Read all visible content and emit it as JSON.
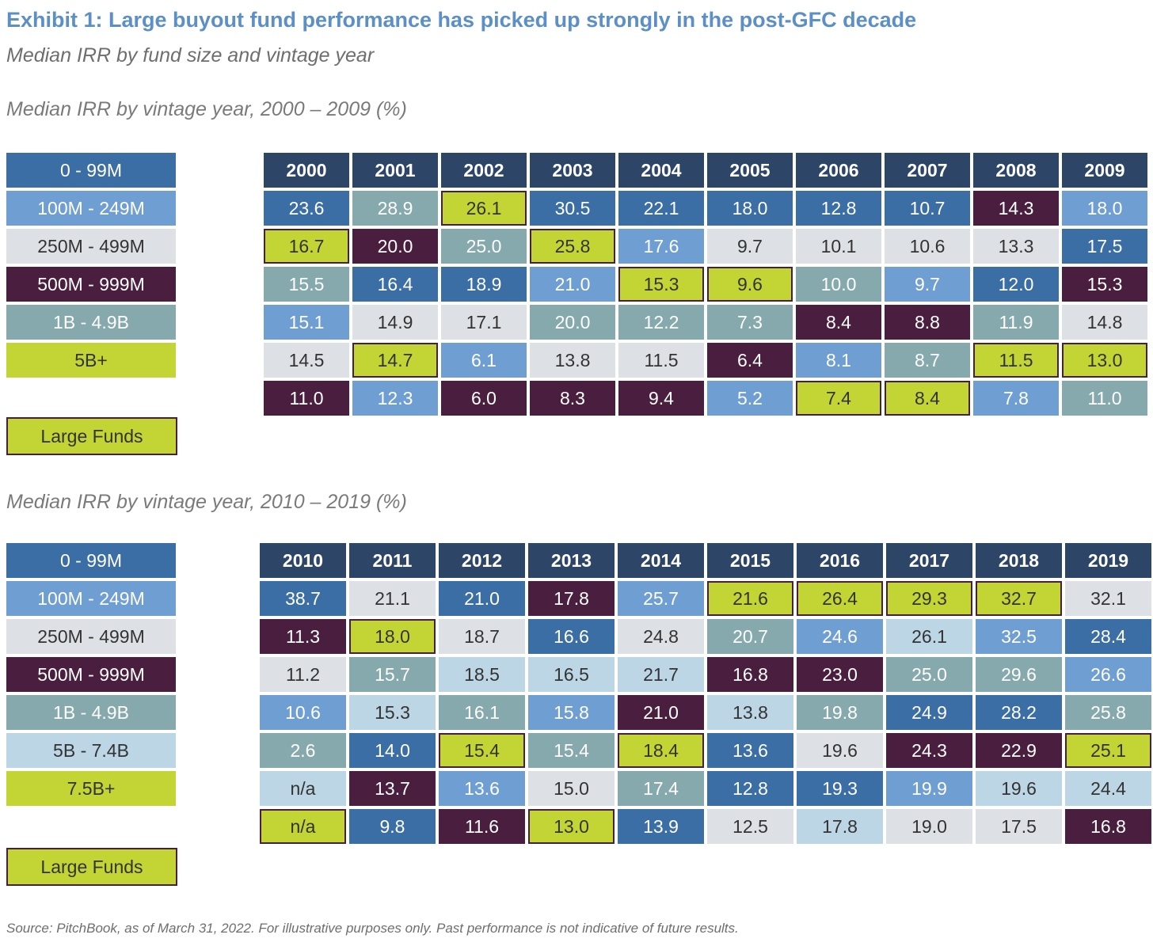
{
  "title": "Exhibit 1: Large buyout fund performance has picked up strongly in the post-GFC decade",
  "subtitle": "Median IRR by fund size and vintage year",
  "source": "Source: PitchBook, as of March 31, 2022. For illustrative purposes only. Past performance is not indicative of future results.",
  "large_funds_label": "Large Funds",
  "colors": {
    "0-99M": "#3b6ea5",
    "100M-249M": "#6f9ed2",
    "250M-499M": "#dde1e6",
    "500M-999M": "#4a1e3e",
    "1B-4.9B": "#85a9ad",
    "5B-7.4B": "#bcd6e6",
    "large": "#c3d535",
    "header": "#2d4566"
  },
  "chart_data": [
    {
      "type": "table",
      "title": "Median IRR by vintage year, 2000 – 2009 (%)",
      "legend": [
        {
          "label": "0 - 99M",
          "key": "0-99M"
        },
        {
          "label": "100M - 249M",
          "key": "100M-249M"
        },
        {
          "label": "250M - 499M",
          "key": "250M-499M"
        },
        {
          "label": "500M - 999M",
          "key": "500M-999M"
        },
        {
          "label": "1B - 4.9B",
          "key": "1B-4.9B"
        },
        {
          "label": "5B+",
          "key": "large"
        }
      ],
      "years": [
        "2000",
        "2001",
        "2002",
        "2003",
        "2004",
        "2005",
        "2006",
        "2007",
        "2008",
        "2009"
      ],
      "rows": [
        [
          {
            "value": "23.6",
            "size": "0-99M"
          },
          {
            "value": "28.9",
            "size": "1B-4.9B"
          },
          {
            "value": "26.1",
            "size": "large"
          },
          {
            "value": "30.5",
            "size": "0-99M"
          },
          {
            "value": "22.1",
            "size": "0-99M"
          },
          {
            "value": "18.0",
            "size": "0-99M"
          },
          {
            "value": "12.8",
            "size": "0-99M"
          },
          {
            "value": "10.7",
            "size": "0-99M"
          },
          {
            "value": "14.3",
            "size": "500M-999M"
          },
          {
            "value": "18.0",
            "size": "100M-249M"
          }
        ],
        [
          {
            "value": "16.7",
            "size": "large"
          },
          {
            "value": "20.0",
            "size": "500M-999M"
          },
          {
            "value": "25.0",
            "size": "1B-4.9B"
          },
          {
            "value": "25.8",
            "size": "large"
          },
          {
            "value": "17.6",
            "size": "100M-249M"
          },
          {
            "value": "9.7",
            "size": "250M-499M"
          },
          {
            "value": "10.1",
            "size": "250M-499M"
          },
          {
            "value": "10.6",
            "size": "250M-499M"
          },
          {
            "value": "13.3",
            "size": "250M-499M"
          },
          {
            "value": "17.5",
            "size": "0-99M"
          }
        ],
        [
          {
            "value": "15.5",
            "size": "1B-4.9B"
          },
          {
            "value": "16.4",
            "size": "0-99M"
          },
          {
            "value": "18.9",
            "size": "0-99M"
          },
          {
            "value": "21.0",
            "size": "100M-249M"
          },
          {
            "value": "15.3",
            "size": "large"
          },
          {
            "value": "9.6",
            "size": "large"
          },
          {
            "value": "10.0",
            "size": "1B-4.9B"
          },
          {
            "value": "9.7",
            "size": "100M-249M"
          },
          {
            "value": "12.0",
            "size": "0-99M"
          },
          {
            "value": "15.3",
            "size": "500M-999M"
          }
        ],
        [
          {
            "value": "15.1",
            "size": "100M-249M"
          },
          {
            "value": "14.9",
            "size": "250M-499M"
          },
          {
            "value": "17.1",
            "size": "250M-499M"
          },
          {
            "value": "20.0",
            "size": "1B-4.9B"
          },
          {
            "value": "12.2",
            "size": "1B-4.9B"
          },
          {
            "value": "7.3",
            "size": "1B-4.9B"
          },
          {
            "value": "8.4",
            "size": "500M-999M"
          },
          {
            "value": "8.8",
            "size": "500M-999M"
          },
          {
            "value": "11.9",
            "size": "1B-4.9B"
          },
          {
            "value": "14.8",
            "size": "250M-499M"
          }
        ],
        [
          {
            "value": "14.5",
            "size": "250M-499M"
          },
          {
            "value": "14.7",
            "size": "large"
          },
          {
            "value": "6.1",
            "size": "100M-249M"
          },
          {
            "value": "13.8",
            "size": "250M-499M"
          },
          {
            "value": "11.5",
            "size": "250M-499M"
          },
          {
            "value": "6.4",
            "size": "500M-999M"
          },
          {
            "value": "8.1",
            "size": "100M-249M"
          },
          {
            "value": "8.7",
            "size": "1B-4.9B"
          },
          {
            "value": "11.5",
            "size": "large"
          },
          {
            "value": "13.0",
            "size": "large"
          }
        ],
        [
          {
            "value": "11.0",
            "size": "500M-999M"
          },
          {
            "value": "12.3",
            "size": "100M-249M"
          },
          {
            "value": "6.0",
            "size": "500M-999M"
          },
          {
            "value": "8.3",
            "size": "500M-999M"
          },
          {
            "value": "9.4",
            "size": "500M-999M"
          },
          {
            "value": "5.2",
            "size": "100M-249M"
          },
          {
            "value": "7.4",
            "size": "large"
          },
          {
            "value": "8.4",
            "size": "large"
          },
          {
            "value": "7.8",
            "size": "100M-249M"
          },
          {
            "value": "11.0",
            "size": "1B-4.9B"
          }
        ]
      ]
    },
    {
      "type": "table",
      "title": "Median IRR by vintage year, 2010 – 2019 (%)",
      "legend": [
        {
          "label": "0 - 99M",
          "key": "0-99M"
        },
        {
          "label": "100M - 249M",
          "key": "100M-249M"
        },
        {
          "label": "250M - 499M",
          "key": "250M-499M"
        },
        {
          "label": "500M - 999M",
          "key": "500M-999M"
        },
        {
          "label": "1B - 4.9B",
          "key": "1B-4.9B"
        },
        {
          "label": "5B - 7.4B",
          "key": "5B-7.4B"
        },
        {
          "label": "7.5B+",
          "key": "large"
        }
      ],
      "years": [
        "2010",
        "2011",
        "2012",
        "2013",
        "2014",
        "2015",
        "2016",
        "2017",
        "2018",
        "2019"
      ],
      "rows": [
        [
          {
            "value": "38.7",
            "size": "0-99M"
          },
          {
            "value": "21.1",
            "size": "250M-499M"
          },
          {
            "value": "21.0",
            "size": "0-99M"
          },
          {
            "value": "17.8",
            "size": "500M-999M"
          },
          {
            "value": "25.7",
            "size": "100M-249M"
          },
          {
            "value": "21.6",
            "size": "large"
          },
          {
            "value": "26.4",
            "size": "large"
          },
          {
            "value": "29.3",
            "size": "large"
          },
          {
            "value": "32.7",
            "size": "large"
          },
          {
            "value": "32.1",
            "size": "250M-499M"
          }
        ],
        [
          {
            "value": "11.3",
            "size": "500M-999M"
          },
          {
            "value": "18.0",
            "size": "large"
          },
          {
            "value": "18.7",
            "size": "250M-499M"
          },
          {
            "value": "16.6",
            "size": "0-99M"
          },
          {
            "value": "24.8",
            "size": "250M-499M"
          },
          {
            "value": "20.7",
            "size": "1B-4.9B"
          },
          {
            "value": "24.6",
            "size": "100M-249M"
          },
          {
            "value": "26.1",
            "size": "5B-7.4B"
          },
          {
            "value": "32.5",
            "size": "100M-249M"
          },
          {
            "value": "28.4",
            "size": "0-99M"
          }
        ],
        [
          {
            "value": "11.2",
            "size": "250M-499M"
          },
          {
            "value": "15.7",
            "size": "1B-4.9B"
          },
          {
            "value": "18.5",
            "size": "5B-7.4B"
          },
          {
            "value": "16.5",
            "size": "5B-7.4B"
          },
          {
            "value": "21.7",
            "size": "5B-7.4B"
          },
          {
            "value": "16.8",
            "size": "500M-999M"
          },
          {
            "value": "23.0",
            "size": "500M-999M"
          },
          {
            "value": "25.0",
            "size": "1B-4.9B"
          },
          {
            "value": "29.6",
            "size": "1B-4.9B"
          },
          {
            "value": "26.6",
            "size": "100M-249M"
          }
        ],
        [
          {
            "value": "10.6",
            "size": "100M-249M"
          },
          {
            "value": "15.3",
            "size": "5B-7.4B"
          },
          {
            "value": "16.1",
            "size": "1B-4.9B"
          },
          {
            "value": "15.8",
            "size": "100M-249M"
          },
          {
            "value": "21.0",
            "size": "500M-999M"
          },
          {
            "value": "13.8",
            "size": "5B-7.4B"
          },
          {
            "value": "19.8",
            "size": "1B-4.9B"
          },
          {
            "value": "24.9",
            "size": "0-99M"
          },
          {
            "value": "28.2",
            "size": "0-99M"
          },
          {
            "value": "25.8",
            "size": "1B-4.9B"
          }
        ],
        [
          {
            "value": "2.6",
            "size": "1B-4.9B"
          },
          {
            "value": "14.0",
            "size": "0-99M"
          },
          {
            "value": "15.4",
            "size": "large"
          },
          {
            "value": "15.4",
            "size": "1B-4.9B"
          },
          {
            "value": "18.4",
            "size": "large"
          },
          {
            "value": "13.6",
            "size": "0-99M"
          },
          {
            "value": "19.6",
            "size": "250M-499M"
          },
          {
            "value": "24.3",
            "size": "500M-999M"
          },
          {
            "value": "22.9",
            "size": "500M-999M"
          },
          {
            "value": "25.1",
            "size": "large"
          }
        ],
        [
          {
            "value": "n/a",
            "size": "5B-7.4B"
          },
          {
            "value": "13.7",
            "size": "500M-999M"
          },
          {
            "value": "13.6",
            "size": "100M-249M"
          },
          {
            "value": "15.0",
            "size": "250M-499M"
          },
          {
            "value": "17.4",
            "size": "1B-4.9B"
          },
          {
            "value": "12.8",
            "size": "0-99M"
          },
          {
            "value": "19.3",
            "size": "0-99M"
          },
          {
            "value": "19.9",
            "size": "100M-249M"
          },
          {
            "value": "19.6",
            "size": "5B-7.4B"
          },
          {
            "value": "24.4",
            "size": "5B-7.4B"
          }
        ],
        [
          {
            "value": "n/a",
            "size": "large"
          },
          {
            "value": "9.8",
            "size": "0-99M"
          },
          {
            "value": "11.6",
            "size": "500M-999M"
          },
          {
            "value": "13.0",
            "size": "large"
          },
          {
            "value": "13.9",
            "size": "0-99M"
          },
          {
            "value": "12.5",
            "size": "250M-499M"
          },
          {
            "value": "17.8",
            "size": "5B-7.4B"
          },
          {
            "value": "19.0",
            "size": "250M-499M"
          },
          {
            "value": "17.5",
            "size": "250M-499M"
          },
          {
            "value": "16.8",
            "size": "500M-999M"
          }
        ]
      ]
    }
  ]
}
